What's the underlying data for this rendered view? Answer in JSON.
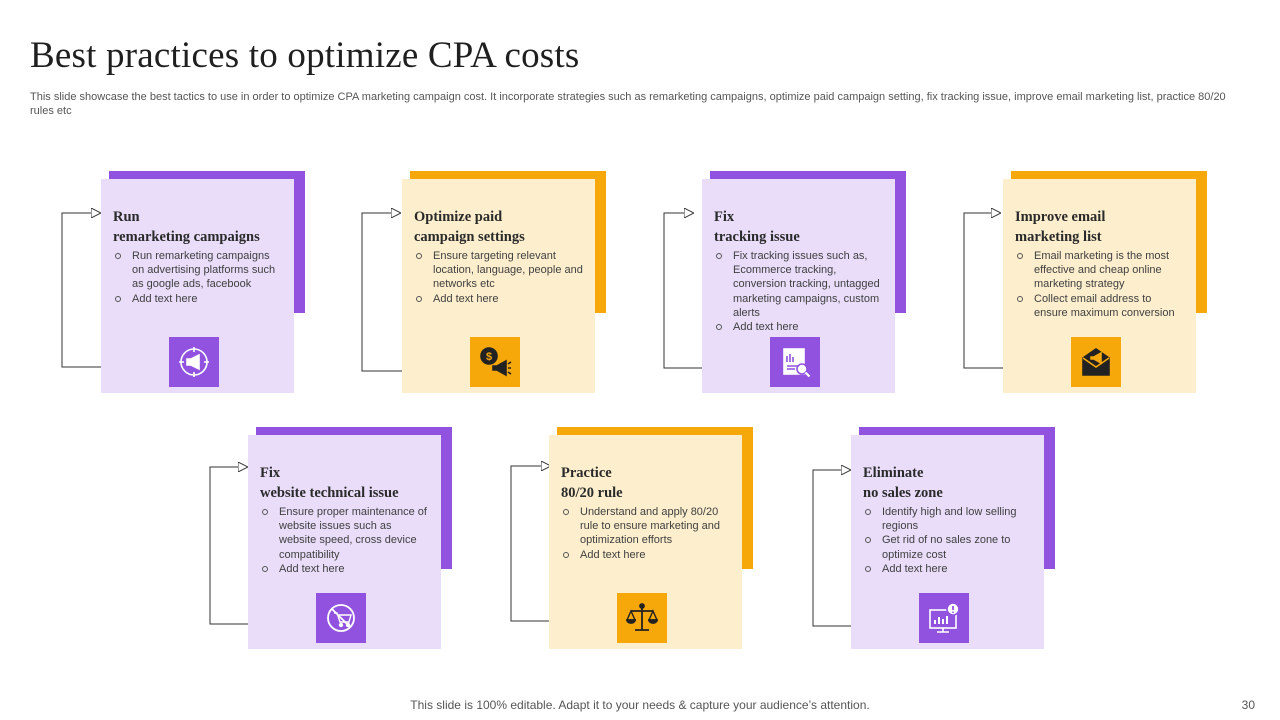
{
  "slide": {
    "title": "Best practices  to optimize  CPA costs",
    "subtitle": "This slide showcase the best tactics to use in order to optimize CPA marketing campaign cost. It incorporate strategies such as remarketing campaigns, optimize paid campaign setting, fix tracking issue, improve email marketing list, practice 80/20 rules etc",
    "footer": "This slide is 100% editable. Adapt it to your needs & capture your audience’s attention.",
    "page_number": "30"
  },
  "colors": {
    "purple": "#9152e0",
    "purple_light": "#e9ddfa",
    "orange": "#f6a70a",
    "orange_light": "#fdefce"
  },
  "cards": [
    {
      "title_line1": "Run",
      "title_line2": "remarketing  campaigns",
      "bullets": [
        "Run remarketing campaigns on advertising platforms such as google ads, facebook",
        "Add text here"
      ],
      "icon": "megaphone-target-icon",
      "color": "purple"
    },
    {
      "title_line1": "Optimize  paid",
      "title_line2": "campaign  settings",
      "bullets": [
        "Ensure targeting relevant location, language, people and networks etc",
        "Add text here"
      ],
      "icon": "dollar-megaphone-icon",
      "color": "orange"
    },
    {
      "title_line1": "Fix",
      "title_line2": "tracking  issue",
      "bullets": [
        "Fix tracking issues such as, Ecommerce tracking, conversion tracking, untagged marketing campaigns, custom alerts",
        "Add text here"
      ],
      "icon": "report-search-icon",
      "color": "purple"
    },
    {
      "title_line1": "Improve  email",
      "title_line2": "marketing  list",
      "bullets": [
        "Email marketing is the most effective and cheap online marketing strategy",
        "Collect email address to ensure maximum conversion"
      ],
      "icon": "email-megaphone-icon",
      "color": "orange"
    },
    {
      "title_line1": "Fix",
      "title_line2": "website technical issue",
      "bullets": [
        "Ensure proper maintenance of website issues such as website speed, cross device compatibility",
        "Add text here"
      ],
      "icon": "no-cart-icon",
      "color": "purple"
    },
    {
      "title_line1": "Practice",
      "title_line2": "80/20 rule",
      "bullets": [
        "Understand and apply 80/20 rule to ensure marketing and optimization efforts",
        "Add text here"
      ],
      "icon": "balance-scale-icon",
      "color": "orange"
    },
    {
      "title_line1": "Eliminate",
      "title_line2": "no sales zone",
      "bullets": [
        "Identify high and low selling regions",
        "Get rid of no sales zone to optimize cost",
        "Add text here"
      ],
      "icon": "chart-alert-icon",
      "color": "purple"
    }
  ]
}
